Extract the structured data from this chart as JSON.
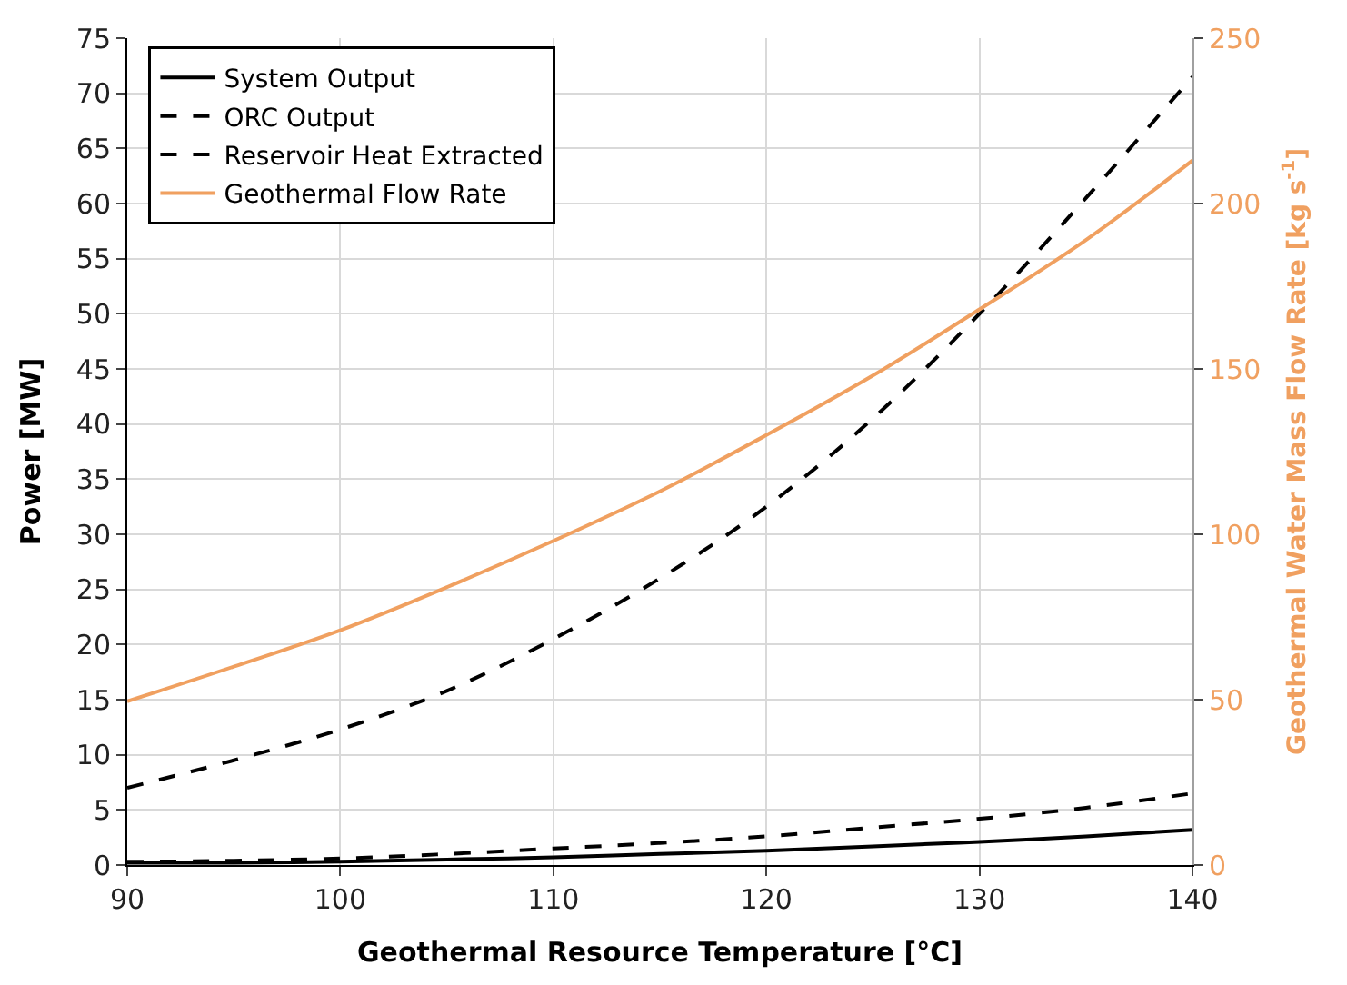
{
  "chart_data": {
    "type": "line",
    "xlabel": "Geothermal Resource Temperature [°C]",
    "ylabel": "Power [MW]",
    "y2label": "Geothermal Water Mass Flow Rate [kg s$^{-1}$]",
    "x": [
      90,
      95,
      100,
      105,
      110,
      115,
      120,
      125,
      130,
      135,
      140
    ],
    "xlim": [
      90,
      140
    ],
    "xticks": [
      90,
      100,
      110,
      120,
      130,
      140
    ],
    "ylim": [
      0,
      75
    ],
    "yticks": [
      0,
      5,
      10,
      15,
      20,
      25,
      30,
      35,
      40,
      45,
      50,
      55,
      60,
      65,
      70,
      75
    ],
    "y2lim": [
      0,
      250
    ],
    "y2ticks": [
      0,
      50,
      100,
      150,
      200,
      250
    ],
    "grid": true,
    "legend": "top left",
    "marker": "none",
    "series": [
      {
        "name": "System Output",
        "color": "#000000",
        "line_style": "solid",
        "values": [
          0.2,
          0.2,
          0.3,
          0.5,
          0.7,
          1.0,
          1.3,
          1.7,
          2.1,
          2.6,
          3.2
        ]
      },
      {
        "name": "ORC Output",
        "color": "#000000",
        "line_style": "dashed",
        "values": [
          0.3,
          0.4,
          0.6,
          1.0,
          1.5,
          2.0,
          2.6,
          3.4,
          4.2,
          5.2,
          6.5
        ]
      },
      {
        "name": "Reservoir Heat Extracted",
        "color": "#000000",
        "line_style": "dashed",
        "values": [
          7,
          9.5,
          12.3,
          15.8,
          20.5,
          26,
          32.5,
          40.5,
          50,
          60.5,
          71.5
        ]
      },
      {
        "name": "Geothermal Flow Rate",
        "color": "#f0a060",
        "line_style": "solid",
        "axis": "y2",
        "values": [
          49.5,
          60,
          71,
          84,
          98,
          113,
          130,
          148,
          168,
          189,
          213
        ]
      }
    ]
  }
}
